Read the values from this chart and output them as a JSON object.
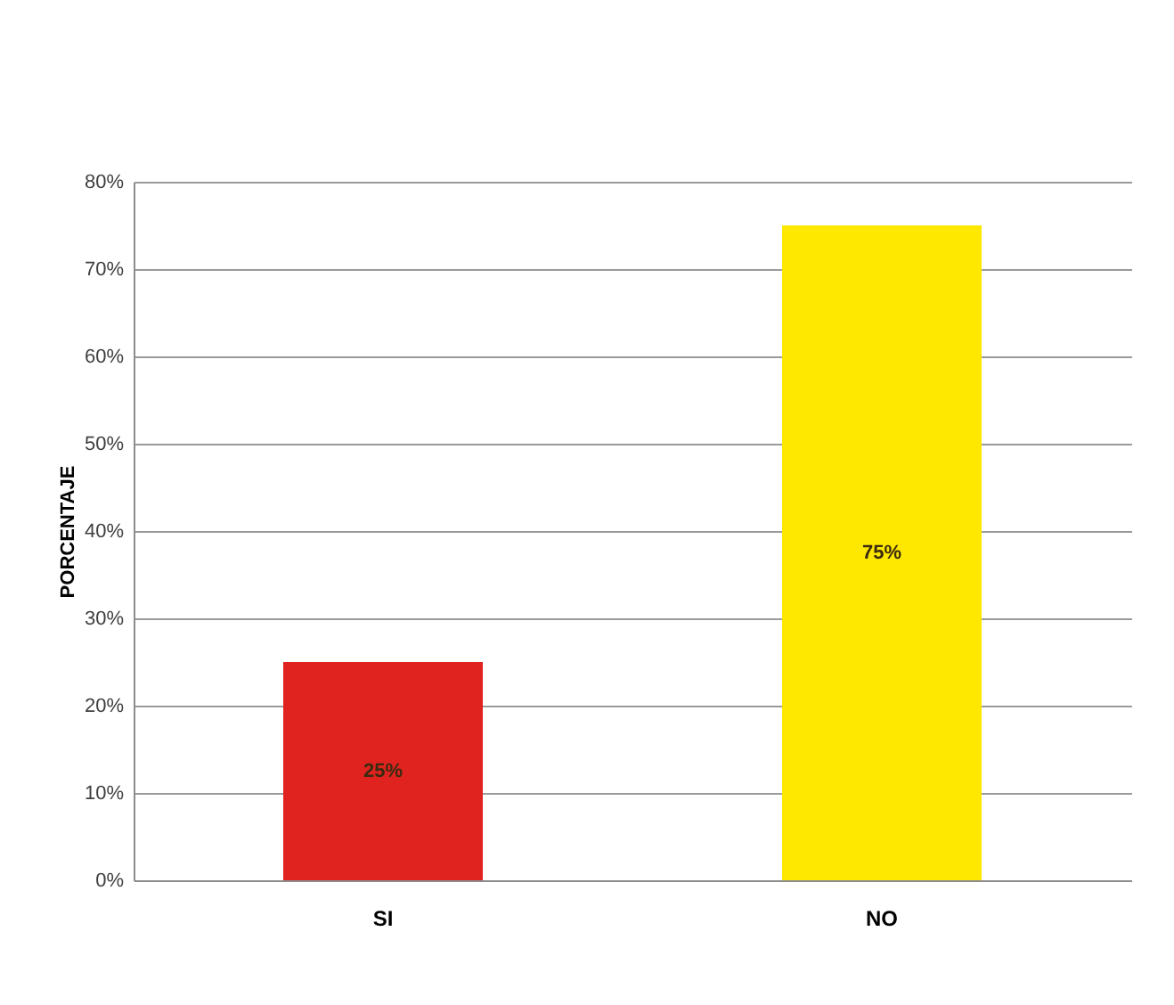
{
  "chart_data": {
    "type": "bar",
    "categories": [
      "SI",
      "NO"
    ],
    "values": [
      25,
      75
    ],
    "colors": [
      "#e0231f",
      "#ffe800"
    ],
    "value_labels": [
      "25%",
      "75%"
    ],
    "ylabel": "PORCENTAJE",
    "ylim": [
      0,
      80
    ],
    "yticks": [
      {
        "value": 0,
        "label": "0%"
      },
      {
        "value": 10,
        "label": "10%"
      },
      {
        "value": 20,
        "label": "20%"
      },
      {
        "value": 30,
        "label": "30%"
      },
      {
        "value": 40,
        "label": "40%"
      },
      {
        "value": 50,
        "label": "50%"
      },
      {
        "value": 60,
        "label": "60%"
      },
      {
        "value": 70,
        "label": "70%"
      },
      {
        "value": 80,
        "label": "80%"
      }
    ],
    "grid": "y"
  }
}
